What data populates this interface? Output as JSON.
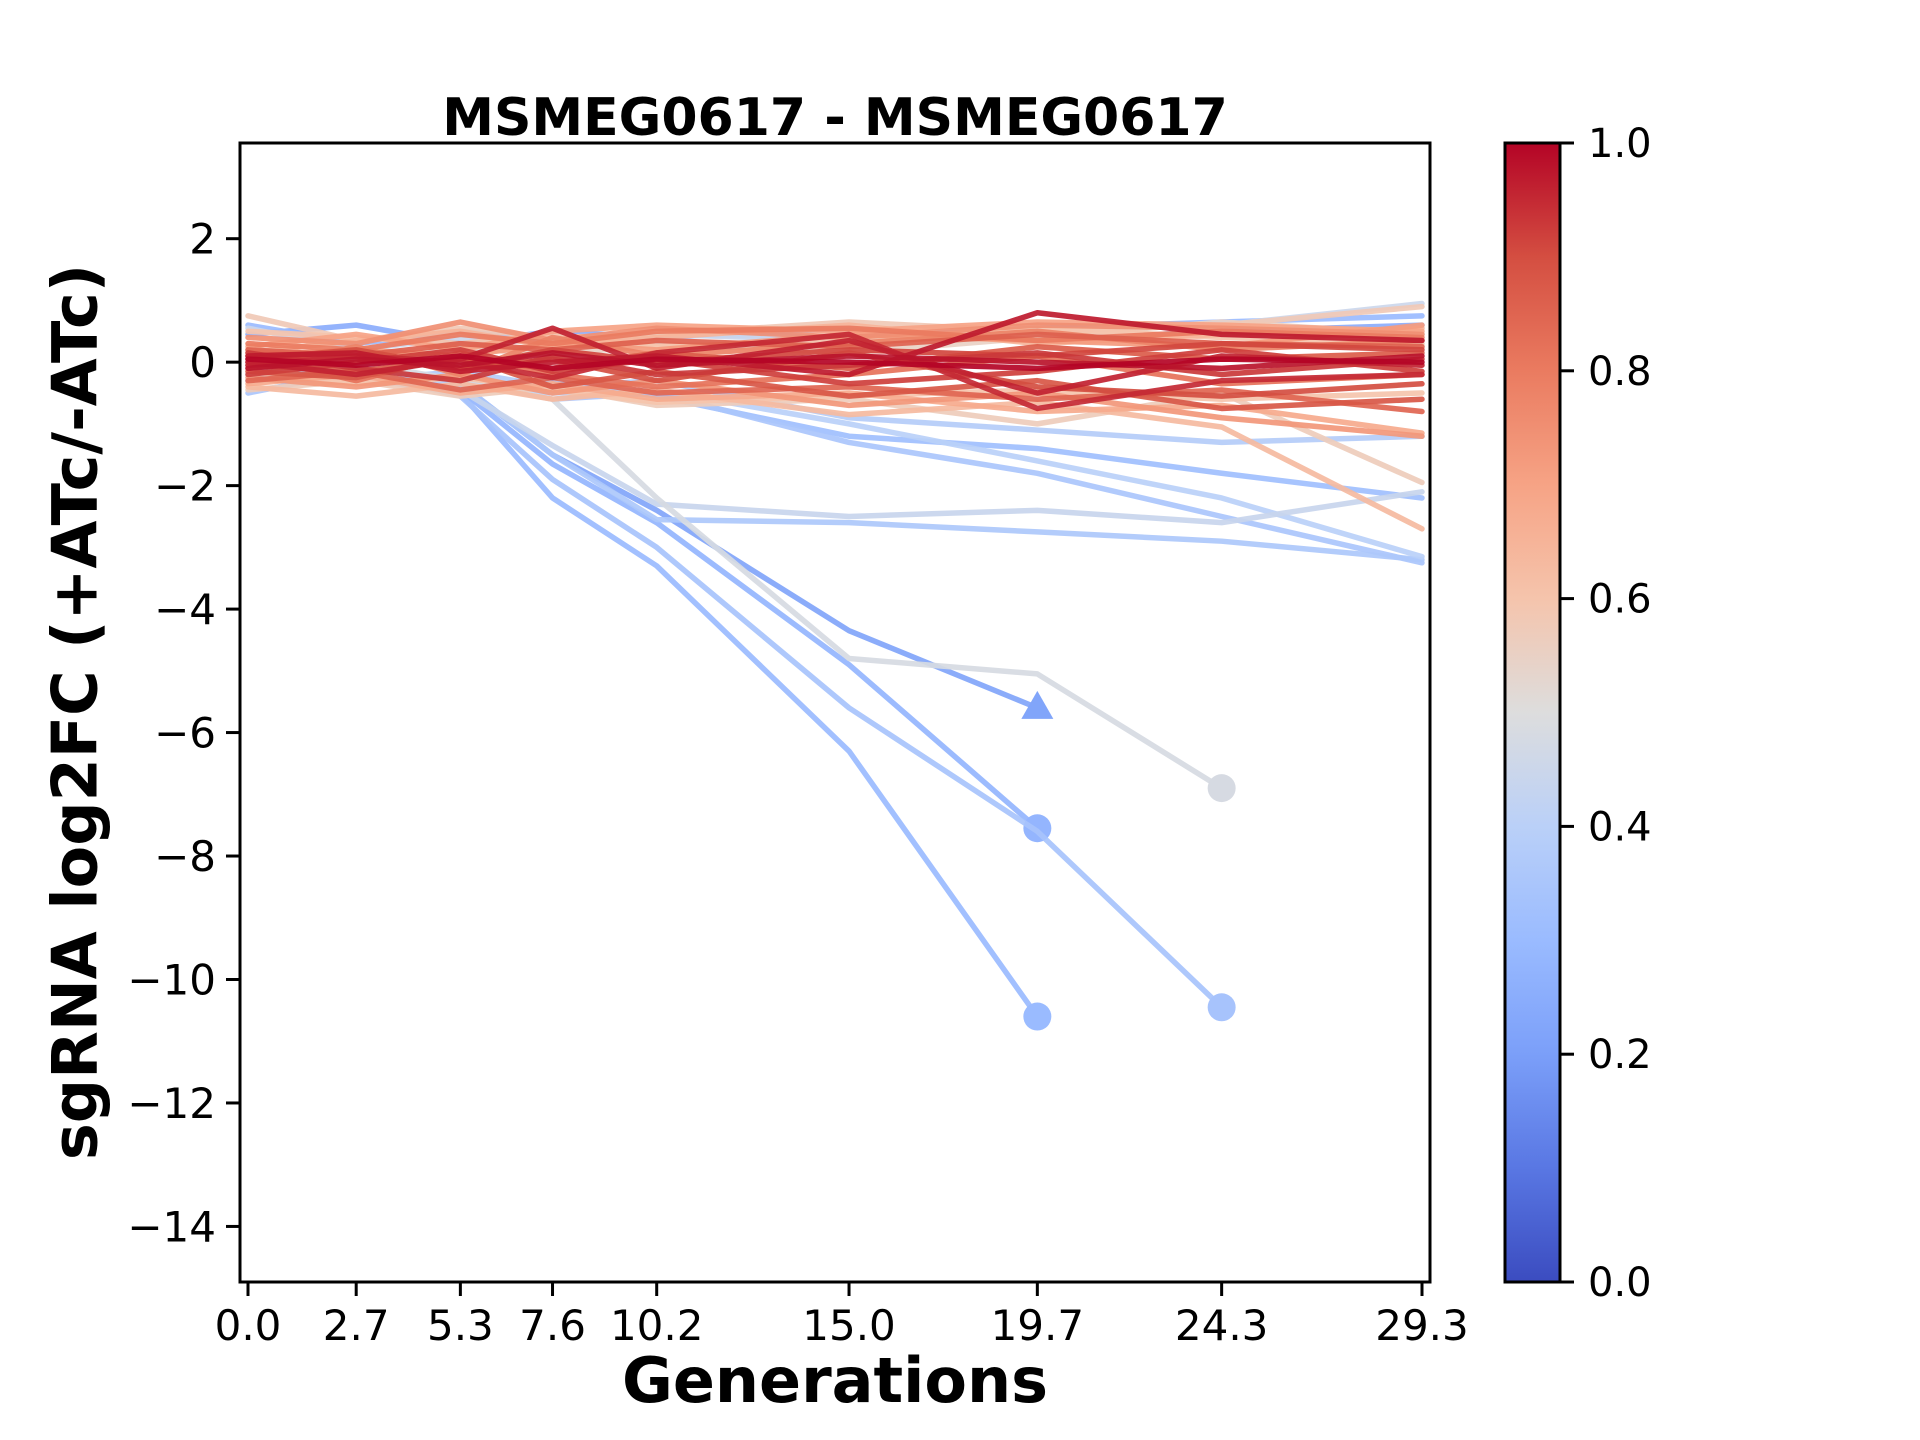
{
  "figure": {
    "title": "MSMEG0617 - MSMEG0617",
    "xlabel": "Generations",
    "ylabel": "sgRNA log2FC (+ATc/-ATc)"
  },
  "chart_data": {
    "type": "line",
    "title": "MSMEG0617 - MSMEG0617",
    "xlabel": "Generations",
    "ylabel": "sgRNA log2FC (+ATc/-ATc)",
    "grid": false,
    "x": [
      0.0,
      2.7,
      5.3,
      7.6,
      10.2,
      15.0,
      19.7,
      24.3,
      29.3
    ],
    "x_tick_labels": [
      "0.0",
      "2.7",
      "5.3",
      "7.6",
      "10.2",
      "15.0",
      "19.7",
      "24.3",
      "29.3"
    ],
    "y_ticks": [
      2,
      0,
      -2,
      -4,
      -6,
      -8,
      -10,
      -12,
      -14
    ],
    "y_tick_labels": [
      "2",
      "0",
      "−2",
      "−4",
      "−6",
      "−8",
      "−10",
      "−12",
      "−14"
    ],
    "xlim": [
      -0.2,
      29.5
    ],
    "ylim": [
      -14.9,
      3.55
    ],
    "line_width": 5.5,
    "line_alpha": 0.92,
    "colorbar": {
      "position": "right",
      "vmin": 0.0,
      "vmax": 1.0,
      "ticks": [
        1.0,
        0.8,
        0.6,
        0.4,
        0.2,
        0.0
      ],
      "tick_labels": [
        "1.0",
        "0.8",
        "0.6",
        "0.4",
        "0.2",
        "0.0"
      ],
      "cmap_name": "coolwarm",
      "cmap_stops": [
        "#3B4CC0",
        "#5977E3",
        "#7B9FF9",
        "#9ABBFF",
        "#BAD0F8",
        "#DDDDDD",
        "#F5C4AC",
        "#F6A385",
        "#EA7B60",
        "#D44E41",
        "#B40426"
      ]
    },
    "series": [
      {
        "color_value": 1.0,
        "y": [
          0.05,
          -0.05,
          0.1,
          -0.1,
          0.05,
          0.0,
          -0.1,
          0.05,
          0.0
        ],
        "end_marker": null
      },
      {
        "color_value": 0.98,
        "y": [
          -0.1,
          0.05,
          -0.05,
          0.15,
          -0.05,
          0.1,
          0.0,
          -0.1,
          0.1
        ],
        "end_marker": null
      },
      {
        "color_value": 0.97,
        "y": [
          0.1,
          0.15,
          -0.15,
          0.0,
          0.1,
          -0.2,
          0.8,
          0.45,
          0.35
        ],
        "end_marker": null
      },
      {
        "color_value": 0.96,
        "y": [
          0.0,
          -0.2,
          0.05,
          0.55,
          -0.1,
          0.35,
          -0.5,
          0.1,
          -0.05
        ],
        "end_marker": null
      },
      {
        "color_value": 0.95,
        "y": [
          -0.05,
          0.1,
          0.0,
          -0.25,
          0.15,
          0.45,
          -0.75,
          -0.3,
          -0.2
        ],
        "end_marker": null
      },
      {
        "color_value": 0.93,
        "y": [
          0.15,
          -0.1,
          -0.3,
          0.1,
          -0.2,
          -0.05,
          0.15,
          -0.2,
          0.05
        ],
        "end_marker": null
      },
      {
        "color_value": 0.92,
        "y": [
          -0.2,
          0.0,
          0.2,
          -0.15,
          0.05,
          -0.35,
          -0.15,
          0.2,
          -0.15
        ],
        "end_marker": null
      },
      {
        "color_value": 0.91,
        "y": [
          0.0,
          0.1,
          -0.1,
          0.2,
          0.0,
          0.2,
          0.1,
          0.3,
          0.2
        ],
        "end_marker": null
      },
      {
        "color_value": 0.9,
        "y": [
          0.05,
          0.2,
          -0.1,
          0.05,
          -0.3,
          0.15,
          -0.4,
          -0.55,
          -0.35
        ],
        "end_marker": null
      },
      {
        "color_value": 0.88,
        "y": [
          -0.15,
          -0.25,
          0.1,
          -0.4,
          -0.15,
          -0.55,
          -0.3,
          -0.75,
          -0.6
        ],
        "end_marker": null
      },
      {
        "color_value": 0.87,
        "y": [
          -0.05,
          -0.15,
          0.05,
          -0.1,
          0.15,
          -0.1,
          0.25,
          0.05,
          0.15
        ],
        "end_marker": null
      },
      {
        "color_value": 0.86,
        "y": [
          0.2,
          0.1,
          0.3,
          0.2,
          0.35,
          0.25,
          0.45,
          0.3,
          0.25
        ],
        "end_marker": null
      },
      {
        "color_value": 0.85,
        "y": [
          -0.3,
          -0.15,
          -0.45,
          -0.25,
          -0.5,
          -0.4,
          -0.6,
          -0.45,
          -0.8
        ],
        "end_marker": null
      },
      {
        "color_value": 0.82,
        "y": [
          0.1,
          -0.3,
          0.15,
          -0.2,
          -0.4,
          -0.2,
          0.1,
          -0.35,
          -0.2
        ],
        "end_marker": null
      },
      {
        "color_value": 0.8,
        "y": [
          0.3,
          0.2,
          0.45,
          0.3,
          0.5,
          0.55,
          0.35,
          0.5,
          0.4
        ],
        "end_marker": null
      },
      {
        "color_value": 0.78,
        "y": [
          -0.1,
          0.25,
          -0.2,
          0.4,
          0.1,
          0.3,
          0.5,
          0.2,
          0.35
        ],
        "end_marker": null
      },
      {
        "color_value": 0.75,
        "y": [
          0.4,
          0.3,
          0.65,
          0.35,
          0.55,
          0.4,
          0.6,
          0.55,
          0.45
        ],
        "end_marker": null
      },
      {
        "color_value": 0.73,
        "y": [
          -0.25,
          -0.4,
          -0.2,
          -0.5,
          -0.3,
          -0.7,
          -0.5,
          -0.9,
          -1.2
        ],
        "end_marker": null
      },
      {
        "color_value": 0.72,
        "y": [
          0.1,
          0.2,
          0.1,
          0.3,
          0.2,
          0.45,
          0.35,
          0.25,
          0.6
        ],
        "end_marker": null
      },
      {
        "color_value": 0.7,
        "y": [
          0.25,
          0.45,
          0.2,
          0.5,
          0.6,
          0.5,
          0.65,
          0.6,
          0.5
        ],
        "end_marker": null
      },
      {
        "color_value": 0.68,
        "y": [
          -0.35,
          -0.2,
          -0.5,
          -0.35,
          -0.6,
          -0.5,
          -0.8,
          -0.7,
          -1.15
        ],
        "end_marker": null
      },
      {
        "color_value": 0.65,
        "y": [
          0.15,
          0.35,
          0.5,
          0.25,
          0.4,
          0.6,
          0.3,
          0.45,
          0.55
        ],
        "end_marker": null
      },
      {
        "color_value": 0.63,
        "y": [
          -0.4,
          -0.55,
          -0.35,
          -0.6,
          -0.45,
          -0.85,
          -0.65,
          -1.05,
          -2.7
        ],
        "end_marker": null
      },
      {
        "color_value": 0.6,
        "y": [
          0.5,
          0.4,
          0.3,
          0.45,
          0.25,
          0.35,
          0.55,
          0.4,
          0.3
        ],
        "end_marker": null
      },
      {
        "color_value": 0.6,
        "y": [
          -0.15,
          -0.35,
          -0.25,
          -0.45,
          -0.65,
          -0.55,
          -0.45,
          -0.6,
          -0.5
        ],
        "end_marker": null
      },
      {
        "color_value": 0.58,
        "y": [
          0.75,
          0.35,
          0.55,
          0.4,
          0.45,
          0.65,
          0.5,
          0.6,
          0.9
        ],
        "end_marker": null
      },
      {
        "color_value": 0.57,
        "y": [
          -0.45,
          -0.3,
          -0.55,
          -0.4,
          -0.7,
          -0.6,
          -1.0,
          -0.5,
          -1.95
        ],
        "end_marker": null
      },
      {
        "color_value": 0.55,
        "y": [
          0.2,
          0.0,
          0.25,
          0.1,
          0.3,
          0.15,
          0.4,
          0.65,
          0.45
        ],
        "end_marker": null
      },
      {
        "color_value": 0.45,
        "y": [
          0.55,
          0.2,
          0.4,
          0.3,
          0.45,
          0.35,
          0.5,
          0.6,
          0.95
        ],
        "end_marker": null
      },
      {
        "color_value": 0.3,
        "y": [
          0.6,
          0.3,
          0.5,
          0.35,
          0.45,
          0.4,
          0.55,
          0.65,
          0.75
        ],
        "end_marker": null
      },
      {
        "color_value": 0.25,
        "y": [
          0.45,
          0.6,
          0.3,
          0.5,
          0.4,
          0.55,
          0.35,
          0.5,
          0.6
        ],
        "end_marker": null
      },
      {
        "color_value": 0.38,
        "y": [
          -0.2,
          -0.3,
          -0.15,
          -0.4,
          -0.3,
          -0.9,
          -1.1,
          -1.3,
          -1.2
        ],
        "end_marker": null
      },
      {
        "color_value": 0.32,
        "y": [
          -0.3,
          -0.2,
          -0.4,
          -0.3,
          -0.55,
          -1.2,
          -1.4,
          -1.8,
          -2.2
        ],
        "end_marker": null
      },
      {
        "color_value": 0.4,
        "y": [
          -0.1,
          -0.25,
          -0.35,
          -0.5,
          -0.45,
          -1.0,
          -1.6,
          -2.2,
          -3.15
        ],
        "end_marker": null
      },
      {
        "color_value": 0.35,
        "y": [
          -0.5,
          -0.15,
          -0.3,
          -0.6,
          -0.5,
          -1.3,
          -1.8,
          -2.5,
          -3.25
        ],
        "end_marker": null
      },
      {
        "color_value": 0.36,
        "y": [
          0.1,
          -0.05,
          -0.35,
          -1.5,
          -2.55,
          -2.6,
          -2.75,
          -2.9,
          -3.2
        ],
        "end_marker": null
      },
      {
        "color_value": 0.44,
        "y": [
          -0.05,
          -0.15,
          -0.45,
          -1.35,
          -2.3,
          -2.5,
          -2.4,
          -2.6,
          -2.1
        ],
        "end_marker": null
      },
      {
        "color_value": 0.22,
        "y": [
          0.05,
          -0.1,
          -0.35,
          -1.5,
          -2.4,
          -4.35,
          -5.6
        ],
        "end_marker": "triangle"
      },
      {
        "color_value": 0.28,
        "y": [
          -0.05,
          -0.2,
          -0.45,
          -1.65,
          -2.6,
          -4.9,
          -7.55
        ],
        "end_marker": "circle"
      },
      {
        "color_value": 0.3,
        "y": [
          0.0,
          -0.25,
          -0.5,
          -2.2,
          -3.3,
          -6.3,
          -10.6
        ],
        "end_marker": "circle"
      },
      {
        "color_value": 0.34,
        "y": [
          0.1,
          -0.15,
          -0.55,
          -1.9,
          -3.0,
          -5.6,
          -7.6,
          -10.45
        ],
        "end_marker": "circle"
      },
      {
        "color_value": 0.48,
        "y": [
          0.05,
          0.0,
          -0.3,
          -0.6,
          -2.2,
          -4.8,
          -5.05,
          -6.9
        ],
        "end_marker": "circle"
      }
    ]
  }
}
